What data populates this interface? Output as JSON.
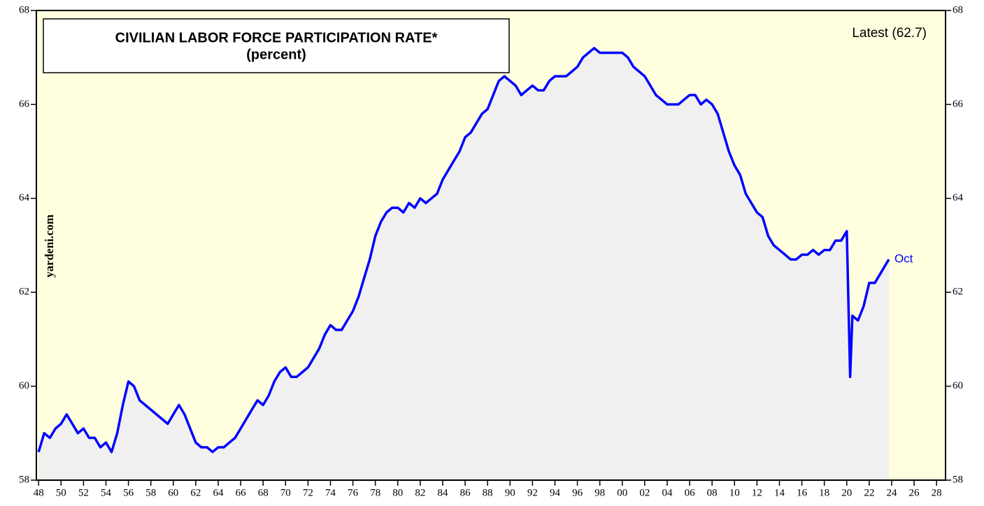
{
  "chart_data": {
    "type": "line",
    "title": "CIVILIAN LABOR FORCE PARTICIPATION RATE*",
    "subtitle": "(percent)",
    "annotation": "Latest (62.7)",
    "end_label": "Oct",
    "source": "yardeni.com",
    "x": [
      1948,
      1948.5,
      1949,
      1949.5,
      1950,
      1950.5,
      1951,
      1951.5,
      1952,
      1952.5,
      1953,
      1953.5,
      1954,
      1954.5,
      1955,
      1955.5,
      1956,
      1956.5,
      1957,
      1957.5,
      1958,
      1958.5,
      1959,
      1959.5,
      1960,
      1960.5,
      1961,
      1961.5,
      1962,
      1962.5,
      1963,
      1963.5,
      1964,
      1964.5,
      1965,
      1965.5,
      1966,
      1966.5,
      1967,
      1967.5,
      1968,
      1968.5,
      1969,
      1969.5,
      1970,
      1970.5,
      1971,
      1971.5,
      1972,
      1972.5,
      1973,
      1973.5,
      1974,
      1974.5,
      1975,
      1975.5,
      1976,
      1976.5,
      1977,
      1977.5,
      1978,
      1978.5,
      1979,
      1979.5,
      1980,
      1980.5,
      1981,
      1981.5,
      1982,
      1982.5,
      1983,
      1983.5,
      1984,
      1984.5,
      1985,
      1985.5,
      1986,
      1986.5,
      1987,
      1987.5,
      1988,
      1988.5,
      1989,
      1989.5,
      1990,
      1990.5,
      1991,
      1991.5,
      1992,
      1992.5,
      1993,
      1993.5,
      1994,
      1994.5,
      1995,
      1995.5,
      1996,
      1996.5,
      1997,
      1997.5,
      1998,
      1998.5,
      1999,
      1999.5,
      2000,
      2000.5,
      2001,
      2001.5,
      2002,
      2002.5,
      2003,
      2003.5,
      2004,
      2004.5,
      2005,
      2005.5,
      2006,
      2006.5,
      2007,
      2007.5,
      2008,
      2008.5,
      2009,
      2009.5,
      2010,
      2010.5,
      2011,
      2011.5,
      2012,
      2012.5,
      2013,
      2013.5,
      2014,
      2014.5,
      2015,
      2015.5,
      2016,
      2016.5,
      2017,
      2017.5,
      2018,
      2018.5,
      2019,
      2019.5,
      2020,
      2020.3,
      2020.5,
      2021,
      2021.5,
      2022,
      2022.5,
      2023,
      2023.5,
      2023.75
    ],
    "series": [
      {
        "name": "Participation rate",
        "color": "#0000ff",
        "values": [
          58.6,
          59.0,
          58.9,
          59.1,
          59.2,
          59.4,
          59.2,
          59.0,
          59.1,
          58.9,
          58.9,
          58.7,
          58.8,
          58.6,
          59.0,
          59.6,
          60.1,
          60.0,
          59.7,
          59.6,
          59.5,
          59.4,
          59.3,
          59.2,
          59.4,
          59.6,
          59.4,
          59.1,
          58.8,
          58.7,
          58.7,
          58.6,
          58.7,
          58.7,
          58.8,
          58.9,
          59.1,
          59.3,
          59.5,
          59.7,
          59.6,
          59.8,
          60.1,
          60.3,
          60.4,
          60.2,
          60.2,
          60.3,
          60.4,
          60.6,
          60.8,
          61.1,
          61.3,
          61.2,
          61.2,
          61.4,
          61.6,
          61.9,
          62.3,
          62.7,
          63.2,
          63.5,
          63.7,
          63.8,
          63.8,
          63.7,
          63.9,
          63.8,
          64.0,
          63.9,
          64.0,
          64.1,
          64.4,
          64.6,
          64.8,
          65.0,
          65.3,
          65.4,
          65.6,
          65.8,
          65.9,
          66.2,
          66.5,
          66.6,
          66.5,
          66.4,
          66.2,
          66.3,
          66.4,
          66.3,
          66.3,
          66.5,
          66.6,
          66.6,
          66.6,
          66.7,
          66.8,
          67.0,
          67.1,
          67.2,
          67.1,
          67.1,
          67.1,
          67.1,
          67.1,
          67.0,
          66.8,
          66.7,
          66.6,
          66.4,
          66.2,
          66.1,
          66.0,
          66.0,
          66.0,
          66.1,
          66.2,
          66.2,
          66.0,
          66.1,
          66.0,
          65.8,
          65.4,
          65.0,
          64.7,
          64.5,
          64.1,
          63.9,
          63.7,
          63.6,
          63.2,
          63.0,
          62.9,
          62.8,
          62.7,
          62.7,
          62.8,
          62.8,
          62.9,
          62.8,
          62.9,
          62.9,
          63.1,
          63.1,
          63.3,
          60.2,
          61.5,
          61.4,
          61.7,
          62.2,
          62.2,
          62.4,
          62.6,
          62.7
        ]
      }
    ],
    "xlim": [
      1947.8,
      2028.8
    ],
    "ylim": [
      58,
      68
    ],
    "xticks": [
      {
        "value": 1948,
        "label": "48"
      },
      {
        "value": 1950,
        "label": "50"
      },
      {
        "value": 1952,
        "label": "52"
      },
      {
        "value": 1954,
        "label": "54"
      },
      {
        "value": 1956,
        "label": "56"
      },
      {
        "value": 1958,
        "label": "58"
      },
      {
        "value": 1960,
        "label": "60"
      },
      {
        "value": 1962,
        "label": "62"
      },
      {
        "value": 1964,
        "label": "64"
      },
      {
        "value": 1966,
        "label": "66"
      },
      {
        "value": 1968,
        "label": "68"
      },
      {
        "value": 1970,
        "label": "70"
      },
      {
        "value": 1972,
        "label": "72"
      },
      {
        "value": 1974,
        "label": "74"
      },
      {
        "value": 1976,
        "label": "76"
      },
      {
        "value": 1978,
        "label": "78"
      },
      {
        "value": 1980,
        "label": "80"
      },
      {
        "value": 1982,
        "label": "82"
      },
      {
        "value": 1984,
        "label": "84"
      },
      {
        "value": 1986,
        "label": "86"
      },
      {
        "value": 1988,
        "label": "88"
      },
      {
        "value": 1990,
        "label": "90"
      },
      {
        "value": 1992,
        "label": "92"
      },
      {
        "value": 1994,
        "label": "94"
      },
      {
        "value": 1996,
        "label": "96"
      },
      {
        "value": 1998,
        "label": "98"
      },
      {
        "value": 2000,
        "label": "00"
      },
      {
        "value": 2002,
        "label": "02"
      },
      {
        "value": 2004,
        "label": "04"
      },
      {
        "value": 2006,
        "label": "06"
      },
      {
        "value": 2008,
        "label": "08"
      },
      {
        "value": 2010,
        "label": "10"
      },
      {
        "value": 2012,
        "label": "12"
      },
      {
        "value": 2014,
        "label": "14"
      },
      {
        "value": 2016,
        "label": "16"
      },
      {
        "value": 2018,
        "label": "18"
      },
      {
        "value": 2020,
        "label": "20"
      },
      {
        "value": 2022,
        "label": "22"
      },
      {
        "value": 2024,
        "label": "24"
      },
      {
        "value": 2026,
        "label": "26"
      },
      {
        "value": 2028,
        "label": "28"
      }
    ],
    "yticks": [
      58,
      60,
      62,
      64,
      66,
      68
    ],
    "background": "#ffffe0",
    "area_color": "#f0f0f0"
  }
}
